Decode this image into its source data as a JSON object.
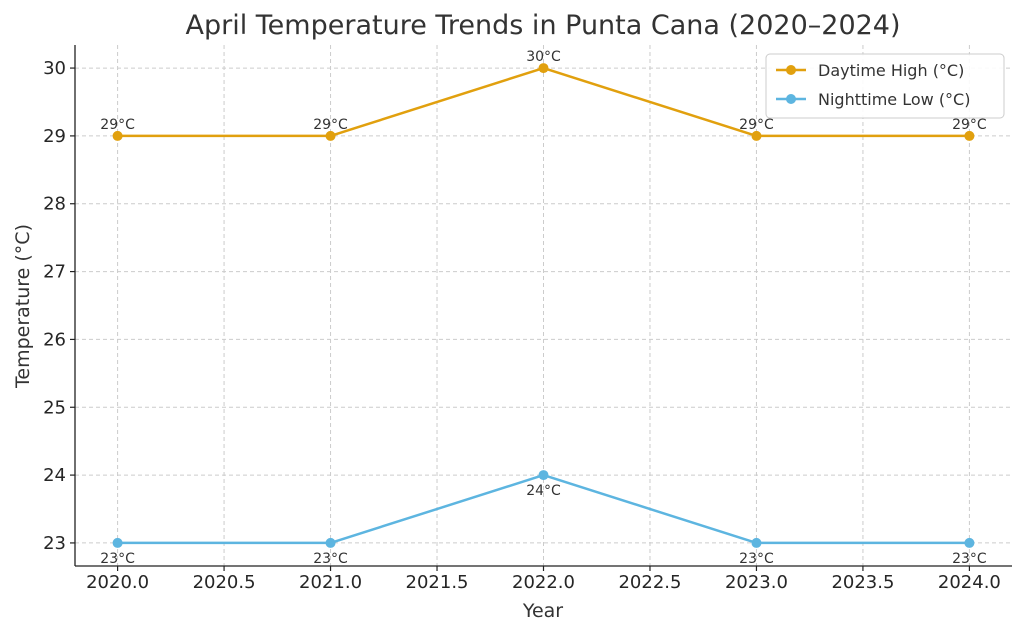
{
  "chart_data": {
    "type": "line",
    "title": "April Temperature Trends in Punta Cana (2020–2024)",
    "xlabel": "Year",
    "ylabel": "Temperature (°C)",
    "x": [
      2020,
      2021,
      2022,
      2023,
      2024
    ],
    "xlim": [
      2019.8,
      2024.2
    ],
    "ylim": [
      22.66,
      30.34
    ],
    "xticks": [
      2020.0,
      2020.5,
      2021.0,
      2021.5,
      2022.0,
      2022.5,
      2023.0,
      2023.5,
      2024.0
    ],
    "xtick_labels": [
      "2020.0",
      "2020.5",
      "2021.0",
      "2021.5",
      "2022.0",
      "2022.5",
      "2023.0",
      "2023.5",
      "2024.0"
    ],
    "yticks": [
      23,
      24,
      25,
      26,
      27,
      28,
      29,
      30
    ],
    "ytick_labels": [
      "23",
      "24",
      "25",
      "26",
      "27",
      "28",
      "29",
      "30"
    ],
    "grid": true,
    "legend_position": "top-right",
    "series": [
      {
        "name": "Daytime High (°C)",
        "color": "#E1A00E",
        "values": [
          29,
          29,
          30,
          29,
          29
        ],
        "labels": [
          "29°C",
          "29°C",
          "30°C",
          "29°C",
          "29°C"
        ],
        "label_position": "above"
      },
      {
        "name": "Nighttime Low (°C)",
        "color": "#5DB5E0",
        "values": [
          23,
          23,
          24,
          23,
          23
        ],
        "labels": [
          "23°C",
          "23°C",
          "24°C",
          "23°C",
          "23°C"
        ],
        "label_position": "below"
      }
    ]
  }
}
